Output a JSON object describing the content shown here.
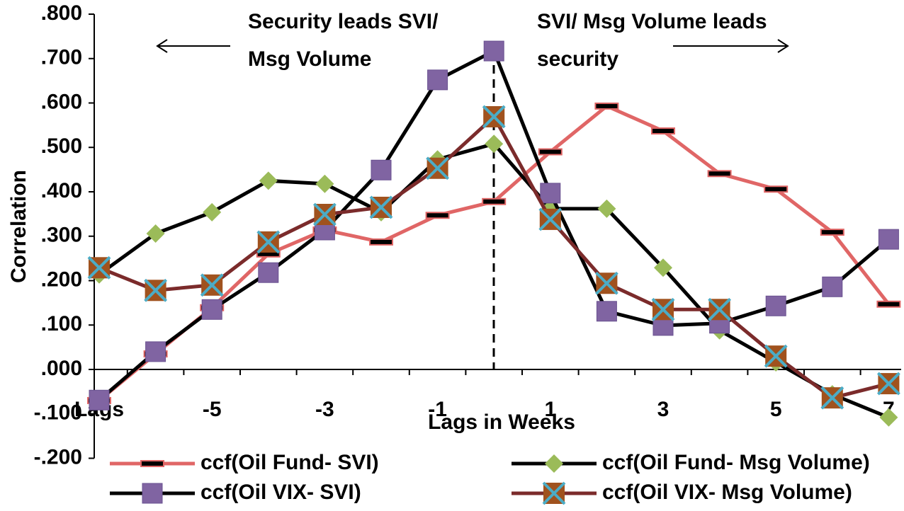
{
  "chart_data": {
    "type": "line",
    "ylabel": "Correlation",
    "xlabel": "Lags in Weeks",
    "annotations": [
      "Security leads SVI/",
      "Msg Volume",
      "SVI/ Msg Volume leads",
      "security"
    ],
    "categories": [
      "Lags",
      null,
      "-5",
      null,
      "-3",
      null,
      "-1",
      null,
      "1",
      null,
      "3",
      null,
      "5",
      null,
      "7"
    ],
    "ylim": [
      -0.2,
      0.8
    ],
    "yticks": [
      {
        "value": -0.2,
        "label": "-.200"
      },
      {
        "value": -0.1,
        "label": "-.100"
      },
      {
        "value": 0,
        "label": ".000"
      },
      {
        "value": 0.1,
        "label": ".100"
      },
      {
        "value": 0.2,
        "label": ".200"
      },
      {
        "value": 0.3,
        "label": ".300"
      },
      {
        "value": 0.4,
        "label": ".400"
      },
      {
        "value": 0.5,
        "label": ".500"
      },
      {
        "value": 0.6,
        "label": ".600"
      },
      {
        "value": 0.7,
        "label": ".700"
      },
      {
        "value": 0.8,
        "label": ".800"
      }
    ],
    "series": [
      {
        "name": "ccf(Oil Fund- SVI)",
        "color": "#e06666",
        "marker": "dash",
        "values": [
          -0.07,
          0.035,
          0.139,
          0.26,
          0.314,
          0.287,
          0.347,
          0.378,
          0.49,
          0.593,
          0.537,
          0.441,
          0.406,
          0.309,
          0.147
        ]
      },
      {
        "name": "ccf(Oil Fund- Msg Volume)",
        "color": "#000000",
        "marker": "diamond",
        "values": [
          0.214,
          0.306,
          0.354,
          0.425,
          0.418,
          0.354,
          0.473,
          0.508,
          0.362,
          0.362,
          0.229,
          0.088,
          0.016,
          -0.056,
          -0.108
        ]
      },
      {
        "name": "ccf(Oil VIX- SVI)",
        "color": "#000000",
        "marker": "square",
        "values": [
          -0.069,
          0.04,
          0.135,
          0.218,
          0.314,
          0.449,
          0.652,
          0.717,
          0.397,
          0.131,
          0.099,
          0.104,
          0.143,
          0.186,
          0.293
        ]
      },
      {
        "name": "ccf(Oil VIX- Msg Volume)",
        "color": "#7b2b2b",
        "marker": "xsquare",
        "values": [
          0.229,
          0.178,
          0.19,
          0.287,
          0.349,
          0.365,
          0.453,
          0.569,
          0.338,
          0.194,
          0.135,
          0.135,
          0.03,
          -0.064,
          -0.032
        ]
      }
    ]
  }
}
